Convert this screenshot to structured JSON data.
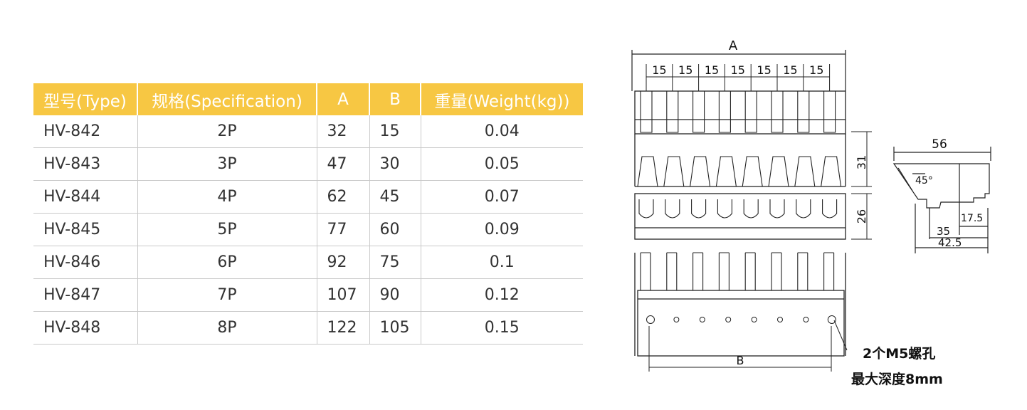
{
  "table": {
    "headers": [
      "型号(Type)",
      "规格(Specification)",
      "A",
      "B",
      "重量(Weight(kg))"
    ],
    "rows": [
      [
        "HV-842",
        "2P",
        "32",
        "15",
        "0.04"
      ],
      [
        "HV-843",
        "3P",
        "47",
        "30",
        "0.05"
      ],
      [
        "HV-844",
        "4P",
        "62",
        "45",
        "0.07"
      ],
      [
        "HV-845",
        "5P",
        "77",
        "60",
        "0.09"
      ],
      [
        "HV-846",
        "6P",
        "92",
        "75",
        "0.1"
      ],
      [
        "HV-847",
        "7P",
        "107",
        "90",
        "0.12"
      ],
      [
        "HV-848",
        "8P",
        "122",
        "105",
        "0.15"
      ]
    ]
  },
  "drawing": {
    "dim_a": "A",
    "dim_b": "B",
    "pitch": [
      "15",
      "15",
      "15",
      "15",
      "15",
      "15",
      "15"
    ],
    "height_top": "31",
    "height_mid": "26",
    "side_width": "56",
    "angle": "45°",
    "side_dim_1": "17.5",
    "side_dim_2": "35",
    "side_dim_3": "42.5",
    "note_line1": "2个M5螺孔",
    "note_line2": "最大深度8mm"
  },
  "colors": {
    "header_bg": "#f7c743",
    "header_text": "#ffffff",
    "grid": "#c9c9c9"
  }
}
